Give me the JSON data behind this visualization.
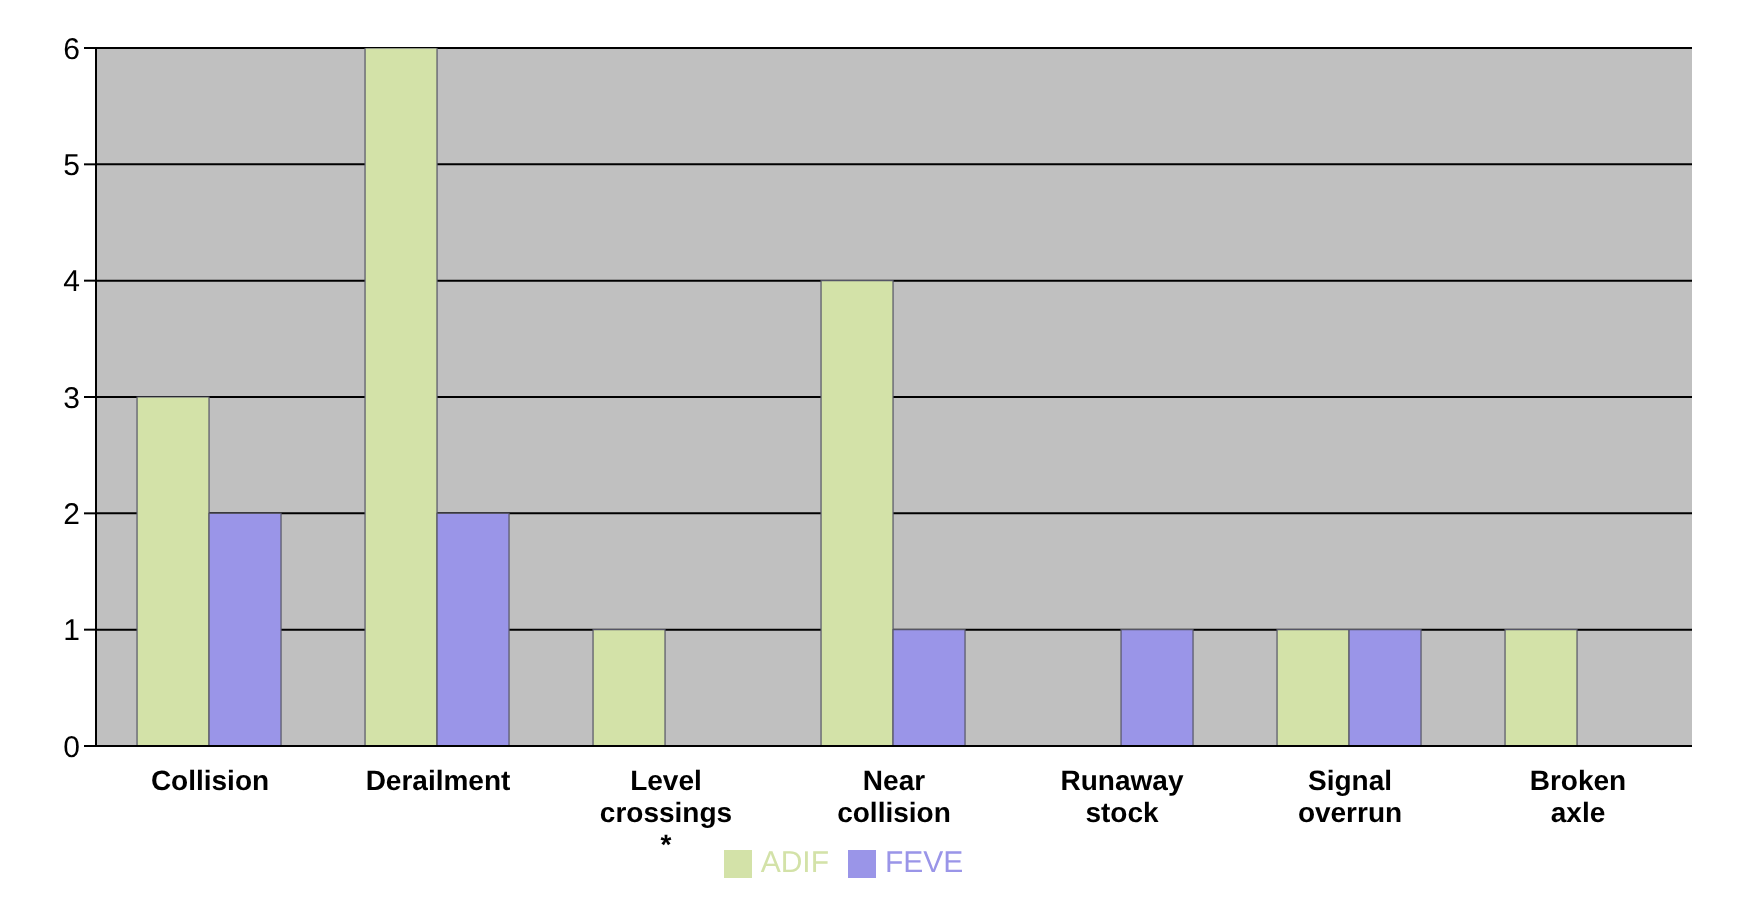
{
  "chart_data": {
    "type": "bar",
    "categories": [
      "Collision",
      "Derailment",
      "Level crossings *",
      "Near collision",
      "Runaway stock",
      "Signal overrun",
      "Broken axle"
    ],
    "series": [
      {
        "name": "ADIF",
        "color": "#d3e2a8",
        "values": [
          3,
          6,
          1,
          4,
          0,
          1,
          1
        ]
      },
      {
        "name": "FEVE",
        "color": "#9a95e8",
        "values": [
          2,
          2,
          0,
          1,
          1,
          1,
          0
        ]
      }
    ],
    "ylim": [
      0,
      6
    ],
    "yticks": [
      0,
      1,
      2,
      3,
      4,
      5,
      6
    ],
    "grid": "y",
    "legend": "bottom"
  }
}
